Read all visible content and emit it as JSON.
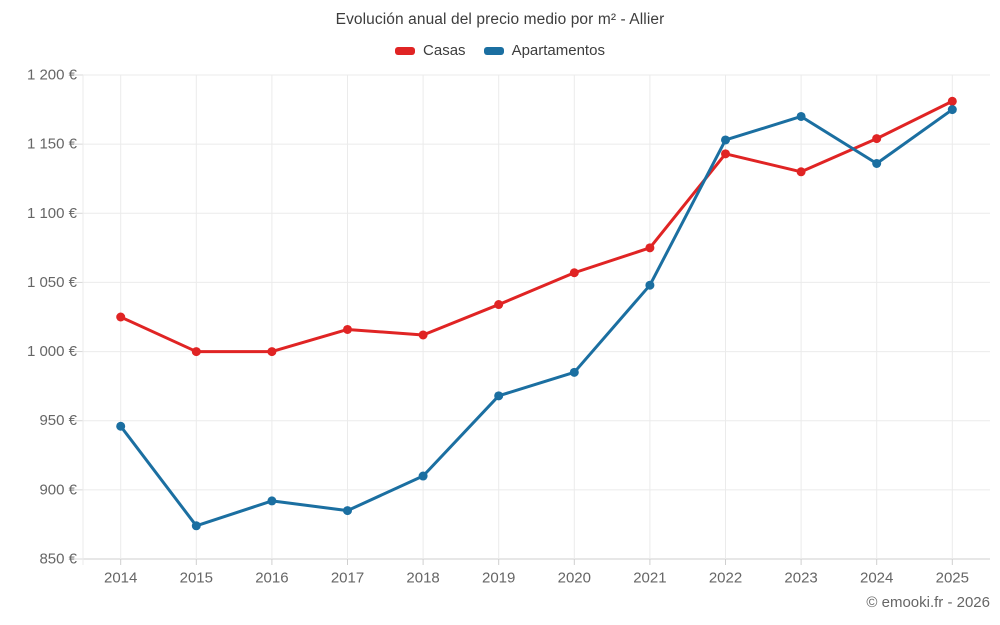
{
  "chart_data": {
    "type": "line",
    "title": "Evolución anual del precio medio por m² - Allier",
    "categories": [
      "2014",
      "2015",
      "2016",
      "2017",
      "2018",
      "2019",
      "2020",
      "2021",
      "2022",
      "2023",
      "2024",
      "2025"
    ],
    "series": [
      {
        "name": "Casas",
        "color": "#e02424",
        "values": [
          1025,
          1000,
          1000,
          1016,
          1012,
          1034,
          1057,
          1075,
          1143,
          1130,
          1154,
          1181
        ]
      },
      {
        "name": "Apartamentos",
        "color": "#1b6fa1",
        "values": [
          946,
          874,
          892,
          885,
          910,
          968,
          985,
          1048,
          1153,
          1170,
          1136,
          1175
        ]
      }
    ],
    "ylim": [
      850,
      1200
    ],
    "ytick_step": 50,
    "y_tick_labels": [
      "850 €",
      "900 €",
      "950 €",
      "1 000 €",
      "1 050 €",
      "1 100 €",
      "1 150 €",
      "1 200 €"
    ],
    "grid": true,
    "legend_position": "top",
    "currency_suffix": "€"
  },
  "footer": {
    "attribution": "© emooki.fr - 2026"
  },
  "colors": {
    "grid": "#ebebeb",
    "axis_line": "#cfcfcf",
    "tick": "#d8d8d8",
    "tick_text": "#666666",
    "title_text": "#3d3d3d"
  }
}
